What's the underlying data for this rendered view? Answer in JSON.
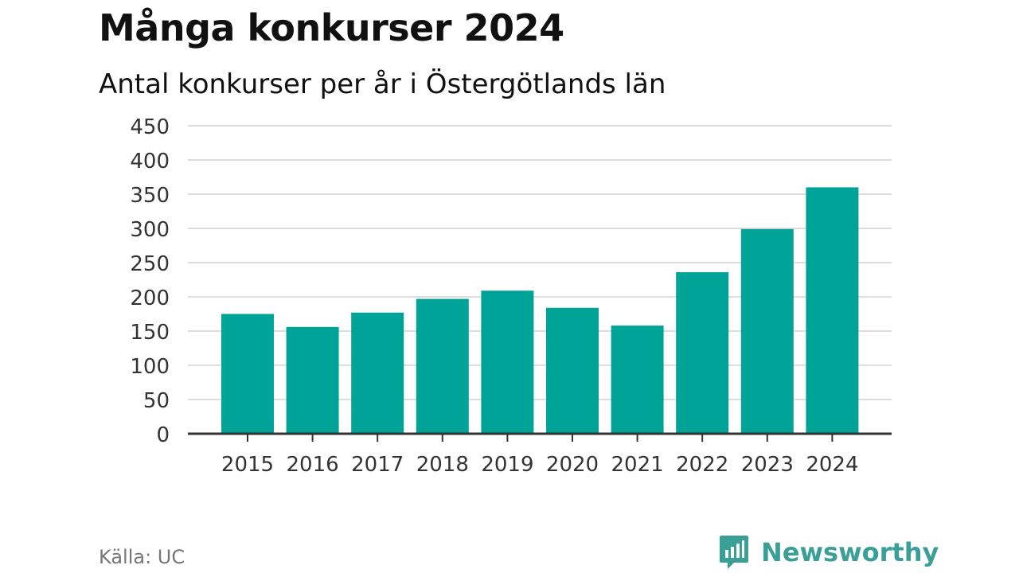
{
  "title": "Många konkurser 2024",
  "subtitle": "Antal konkurser per år i Östergötlands län",
  "source": "Källa: UC",
  "brand": {
    "name": "Newsworthy",
    "icon": "newsworthy-logo-icon",
    "color": "#3aa097"
  },
  "colors": {
    "bar": "#00a398",
    "grid": "#dddddd",
    "axis": "#333333"
  },
  "chart_data": {
    "type": "bar",
    "categories": [
      "2015",
      "2016",
      "2017",
      "2018",
      "2019",
      "2020",
      "2021",
      "2022",
      "2023",
      "2024"
    ],
    "values": [
      175,
      156,
      177,
      197,
      209,
      184,
      158,
      236,
      299,
      360
    ],
    "yticks": [
      "0",
      "50",
      "100",
      "150",
      "200",
      "250",
      "300",
      "350",
      "400",
      "450"
    ],
    "ylim": [
      0,
      450
    ],
    "grid": true,
    "legend": "none"
  }
}
